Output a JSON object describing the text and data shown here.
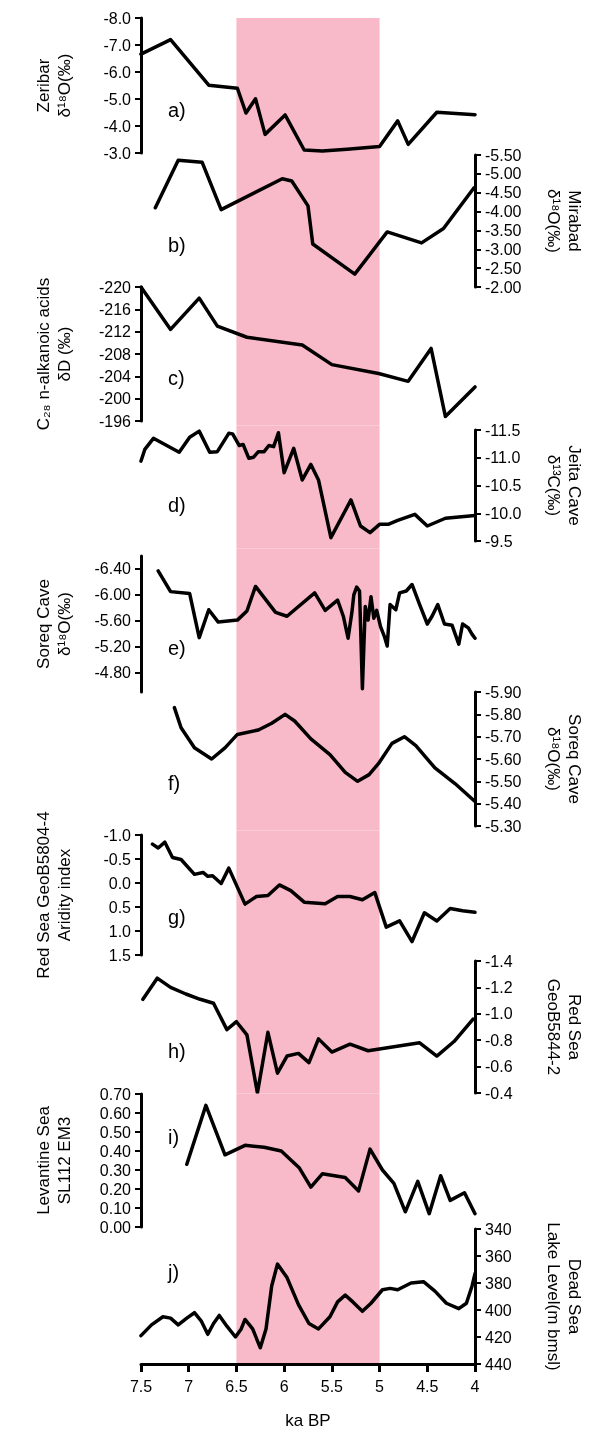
{
  "chart_data": [
    {
      "type": "line",
      "ylabel": "Zeribar\nδ¹⁸O(‰)",
      "annotations": [
        "a)"
      ],
      "xlim": [
        7.5,
        4
      ],
      "ylim": [
        -3.0,
        -8.0
      ],
      "yticks": [
        {
          "value": -8,
          "label": "-8.0"
        },
        {
          "value": -7,
          "label": "-7.0"
        },
        {
          "value": -6,
          "label": "-6.0"
        },
        {
          "value": -5,
          "label": "-5.0"
        },
        {
          "value": -4,
          "label": "-4.0"
        },
        {
          "value": -3,
          "label": "-3.0"
        }
      ],
      "tick_labels": "y",
      "marker": "none",
      "line_style": "solid",
      "bands": [
        {
          "axis": "x",
          "from": 6.5,
          "to": 5,
          "color": "#f8bac8"
        }
      ],
      "series": [
        {
          "color": "#000000",
          "x": [
            7.5,
            7.19,
            6.79,
            6.49,
            6.4,
            6.3,
            6.2,
            5.99,
            5.79,
            5.6,
            5.34,
            5.0,
            4.81,
            4.7,
            4.4,
            4.0
          ],
          "values": [
            -6.66,
            -7.2,
            -5.51,
            -5.4,
            -4.48,
            -5.01,
            -3.69,
            -4.41,
            -3.11,
            -3.07,
            -3.14,
            -3.24,
            -4.19,
            -3.32,
            -4.51,
            -4.42
          ]
        }
      ]
    },
    {
      "type": "line",
      "y2label": "Mirabad\nδ¹⁸O(‰)",
      "annotations": [
        "b)"
      ],
      "xlim": [
        7.5,
        4
      ],
      "y2lim": [
        -2.0,
        -5.5
      ],
      "y2ticks": [
        {
          "value": -5.5,
          "label": "-5.50"
        },
        {
          "value": -5,
          "label": "-5.00"
        },
        {
          "value": -4.5,
          "label": "-4.50"
        },
        {
          "value": -4,
          "label": "-4.00"
        },
        {
          "value": -3.5,
          "label": "-3.50"
        },
        {
          "value": -3,
          "label": "-3.00"
        },
        {
          "value": -2.5,
          "label": "-2.50"
        },
        {
          "value": -2,
          "label": "-2.00"
        }
      ],
      "tick_labels": "y",
      "marker": "none",
      "line_style": "solid",
      "bands": [
        {
          "axis": "x",
          "from": 6.5,
          "to": 5,
          "color": "#f8bac8"
        }
      ],
      "series": [
        {
          "axis": "y2",
          "color": "#000000",
          "x": [
            7.35,
            7.11,
            6.86,
            6.66,
            6.02,
            5.92,
            5.75,
            5.7,
            5.26,
            4.92,
            4.56,
            4.33,
            4.01
          ],
          "values": [
            -4.1,
            -5.36,
            -5.31,
            -4.05,
            -4.87,
            -4.81,
            -4.15,
            -3.14,
            -2.34,
            -3.46,
            -3.17,
            -3.55,
            -4.63
          ]
        }
      ]
    },
    {
      "type": "line",
      "ylabel": "C₂₈ n-alkanoic acids\nδD (‰)",
      "annotations": [
        "c)"
      ],
      "xlim": [
        7.5,
        4
      ],
      "ylim": [
        -196,
        -220
      ],
      "yticks": [
        -220,
        -216,
        -212,
        -208,
        -204,
        -200,
        -196
      ],
      "tick_labels": "y",
      "marker": "none",
      "line_style": "solid",
      "bands": [
        {
          "axis": "x",
          "from": 6.5,
          "to": 5,
          "color": "#f8bac8"
        }
      ],
      "series": [
        {
          "color": "#000000",
          "x": [
            7.5,
            7.19,
            6.89,
            6.7,
            6.39,
            5.81,
            5.5,
            5.01,
            4.7,
            4.46,
            4.31,
            4.0
          ],
          "values": [
            -220,
            -212.4,
            -218,
            -213,
            -211,
            -209.6,
            -206.1,
            -204.5,
            -203.1,
            -209,
            -196.8,
            -202.1
          ]
        }
      ]
    },
    {
      "type": "line",
      "y2label": "Jeita Cave\nδ¹³C(‰)",
      "annotations": [
        "d)"
      ],
      "xlim": [
        7.5,
        4
      ],
      "y2lim": [
        -9.5,
        -11.5
      ],
      "y2ticks": [
        -11.5,
        {
          "value": -11,
          "label": "-11.0"
        },
        -10.5,
        {
          "value": -10,
          "label": "-10.0"
        },
        -9.5
      ],
      "tick_labels": "y",
      "marker": "none",
      "line_style": "solid",
      "bands": [
        {
          "axis": "x",
          "from": 6.5,
          "to": 5,
          "color": "#f8bac8"
        }
      ],
      "series": [
        {
          "axis": "y2",
          "color": "#000000",
          "x": [
            7.5,
            7.46,
            7.37,
            7.1,
            6.99,
            6.89,
            6.78,
            6.7,
            6.58,
            6.54,
            6.47,
            6.43,
            6.37,
            6.32,
            6.27,
            6.21,
            6.16,
            6.11,
            6.06,
            6.0,
            5.9,
            5.81,
            5.72,
            5.64,
            5.51,
            5.3,
            5.2,
            5.1,
            5.0,
            4.91,
            4.81,
            4.63,
            4.5,
            4.31,
            4.0
          ],
          "values": [
            -10.94,
            -11.15,
            -11.35,
            -11.1,
            -11.37,
            -11.48,
            -11.1,
            -11.11,
            -11.44,
            -11.43,
            -11.22,
            -11.24,
            -10.99,
            -11.01,
            -11.11,
            -11.11,
            -11.22,
            -11.2,
            -11.45,
            -10.73,
            -11.17,
            -10.6,
            -10.88,
            -10.6,
            -9.56,
            -10.24,
            -9.77,
            -9.65,
            -9.8,
            -9.8,
            -9.87,
            -9.98,
            -9.77,
            -9.91,
            -9.96
          ]
        }
      ]
    },
    {
      "type": "line",
      "ylabel": "Soreq Cave\nδ¹⁸O(‰)",
      "annotations": [
        "e)"
      ],
      "xlim": [
        7.5,
        4
      ],
      "ylim": [
        -4.5,
        -6.6
      ],
      "yticks": [
        {
          "value": -6.4,
          "label": "-6.40"
        },
        {
          "value": -6,
          "label": "-6.00"
        },
        {
          "value": -5.6,
          "label": "-5.60"
        },
        {
          "value": -5.2,
          "label": "-5.20"
        },
        {
          "value": -4.8,
          "label": "-4.80"
        }
      ],
      "tick_labels": "y",
      "marker": "none",
      "line_style": "solid",
      "bands": [
        {
          "axis": "x",
          "from": 6.5,
          "to": 5,
          "color": "#f8bac8"
        }
      ],
      "series": [
        {
          "color": "#000000",
          "x": [
            7.32,
            7.19,
            6.99,
            6.89,
            6.79,
            6.69,
            6.49,
            6.39,
            6.3,
            6.09,
            5.97,
            5.68,
            5.57,
            5.44,
            5.38,
            5.33,
            5.29,
            5.27,
            5.24,
            5.21,
            5.18,
            5.15,
            5.12,
            5.09,
            5.06,
            5.03,
            4.99,
            4.95,
            4.92,
            4.89,
            4.83,
            4.79,
            4.72,
            4.66,
            4.58,
            4.5,
            4.45,
            4.39,
            4.32,
            4.24,
            4.17,
            4.13,
            4.07,
            4.03,
            4.0
          ],
          "values": [
            -6.37,
            -6.05,
            -6.02,
            -5.34,
            -5.77,
            -5.58,
            -5.61,
            -5.75,
            -6.13,
            -5.73,
            -5.67,
            -6.03,
            -5.76,
            -5.92,
            -5.67,
            -5.33,
            -5.73,
            -6.0,
            -6.12,
            -6.06,
            -4.55,
            -5.82,
            -5.61,
            -5.97,
            -5.64,
            -5.76,
            -5.51,
            -5.36,
            -5.21,
            -5.85,
            -5.77,
            -6.03,
            -6.06,
            -6.16,
            -5.85,
            -5.55,
            -5.67,
            -5.85,
            -5.55,
            -5.53,
            -5.24,
            -5.55,
            -5.49,
            -5.39,
            -5.33
          ]
        }
      ]
    },
    {
      "type": "line",
      "y2label": "Soreq Cave\nδ¹⁸O(‰)",
      "annotations": [
        "f)"
      ],
      "xlim": [
        7.5,
        4
      ],
      "y2lim": [
        -5.3,
        -5.9
      ],
      "y2ticks": [
        {
          "value": -5.9,
          "label": "-5.90"
        },
        {
          "value": -5.8,
          "label": "-5.80"
        },
        {
          "value": -5.7,
          "label": "-5.70"
        },
        {
          "value": -5.6,
          "label": "-5.60"
        },
        {
          "value": -5.5,
          "label": "-5.50"
        },
        {
          "value": -5.4,
          "label": "-5.40"
        },
        {
          "value": -5.3,
          "label": "-5.30"
        }
      ],
      "tick_labels": "y",
      "marker": "none",
      "line_style": "solid",
      "bands": [
        {
          "axis": "x",
          "from": 6.5,
          "to": 5,
          "color": "#f8bac8"
        }
      ],
      "series": [
        {
          "axis": "y2",
          "color": "#000000",
          "x": [
            7.15,
            7.08,
            6.94,
            6.76,
            6.62,
            6.49,
            6.27,
            6.13,
            5.99,
            5.89,
            5.72,
            5.52,
            5.36,
            5.23,
            5.11,
            5.01,
            4.87,
            4.74,
            4.62,
            4.42,
            4.21,
            4.0
          ],
          "values": [
            -5.83,
            -5.74,
            -5.65,
            -5.6,
            -5.65,
            -5.71,
            -5.73,
            -5.76,
            -5.8,
            -5.77,
            -5.69,
            -5.62,
            -5.54,
            -5.5,
            -5.53,
            -5.58,
            -5.67,
            -5.7,
            -5.66,
            -5.56,
            -5.49,
            -5.41
          ]
        }
      ]
    },
    {
      "type": "line",
      "ylabel": "Red Sea GeoB5804-4\nAridity index",
      "annotations": [
        "g)"
      ],
      "xlim": [
        7.5,
        4
      ],
      "ylim": [
        1.5,
        -1.0
      ],
      "yticks": [
        {
          "value": -1,
          "label": "-1.0"
        },
        -0.5,
        {
          "value": 0,
          "label": "0.0"
        },
        0.5,
        {
          "value": 1,
          "label": "1.0"
        },
        1.5
      ],
      "tick_labels": "y",
      "marker": "none",
      "line_style": "solid",
      "bands": [
        {
          "axis": "x",
          "from": 6.5,
          "to": 5,
          "color": "#f8bac8"
        }
      ],
      "series": [
        {
          "color": "#000000",
          "x": [
            7.38,
            7.32,
            7.25,
            7.17,
            7.08,
            6.94,
            6.85,
            6.8,
            6.75,
            6.66,
            6.58,
            6.41,
            6.29,
            6.17,
            6.05,
            5.93,
            5.79,
            5.57,
            5.44,
            5.31,
            5.18,
            5.05,
            4.93,
            4.79,
            4.66,
            4.53,
            4.4,
            4.26,
            4.13,
            4.0
          ],
          "values": [
            -0.81,
            -0.73,
            -0.85,
            -0.53,
            -0.49,
            -0.18,
            -0.22,
            -0.14,
            -0.15,
            0.01,
            -0.31,
            0.44,
            0.28,
            0.26,
            0.04,
            0.16,
            0.4,
            0.43,
            0.28,
            0.28,
            0.35,
            0.2,
            0.92,
            0.79,
            1.22,
            0.62,
            0.79,
            0.53,
            0.58,
            0.61
          ]
        }
      ]
    },
    {
      "type": "line",
      "y2label": "Red Sea\nGeoB5844-2",
      "annotations": [
        "h)"
      ],
      "xlim": [
        7.5,
        4
      ],
      "y2lim": [
        -0.4,
        -1.4
      ],
      "y2ticks": [
        -1.4,
        -1.2,
        {
          "value": -1,
          "label": "-1.0"
        },
        -0.8,
        -0.6,
        -0.4
      ],
      "tick_labels": "y",
      "marker": "none",
      "line_style": "solid",
      "bands": [
        {
          "axis": "x",
          "from": 6.5,
          "to": 5,
          "color": "#f8bac8"
        }
      ],
      "series": [
        {
          "axis": "y2",
          "color": "#000000",
          "x": [
            7.48,
            7.33,
            7.19,
            7.03,
            6.88,
            6.74,
            6.6,
            6.5,
            6.39,
            6.28,
            6.17,
            6.07,
            5.97,
            5.85,
            5.74,
            5.64,
            5.5,
            5.31,
            5.12,
            4.58,
            4.4,
            4.22,
            4.02
          ],
          "values": [
            -1.11,
            -1.27,
            -1.2,
            -1.15,
            -1.11,
            -1.08,
            -0.88,
            -0.94,
            -0.84,
            -0.4,
            -0.86,
            -0.55,
            -0.68,
            -0.7,
            -0.63,
            -0.81,
            -0.71,
            -0.77,
            -0.72,
            -0.78,
            -0.68,
            -0.79,
            -0.96
          ]
        }
      ]
    },
    {
      "type": "line",
      "ylabel": "Levantine Sea\nSL112 EM3",
      "annotations": [
        "i)"
      ],
      "xlim": [
        7.5,
        4
      ],
      "ylim": [
        0,
        0.7
      ],
      "yticks": [
        {
          "value": 0,
          "label": "0.00"
        },
        {
          "value": 0.1,
          "label": "0.10"
        },
        {
          "value": 0.2,
          "label": "0.20"
        },
        {
          "value": 0.3,
          "label": "0.30"
        },
        {
          "value": 0.4,
          "label": "0.40"
        },
        {
          "value": 0.5,
          "label": "0.50"
        },
        {
          "value": 0.6,
          "label": "0.60"
        },
        {
          "value": 0.7,
          "label": "0.70"
        }
      ],
      "tick_labels": "y",
      "marker": "none",
      "line_style": "solid",
      "bands": [
        {
          "axis": "x",
          "from": 6.5,
          "to": 5,
          "color": "#f8bac8"
        }
      ],
      "series": [
        {
          "color": "#000000",
          "x": [
            7.02,
            6.82,
            6.62,
            6.41,
            6.21,
            6.03,
            5.84,
            5.72,
            5.6,
            5.36,
            5.22,
            5.1,
            4.97,
            4.85,
            4.73,
            4.6,
            4.48,
            4.36,
            4.26,
            4.11,
            4.0
          ],
          "values": [
            0.33,
            0.64,
            0.38,
            0.43,
            0.42,
            0.4,
            0.31,
            0.21,
            0.28,
            0.26,
            0.19,
            0.41,
            0.3,
            0.23,
            0.08,
            0.24,
            0.07,
            0.27,
            0.14,
            0.18,
            0.07
          ]
        }
      ]
    },
    {
      "type": "line",
      "xlabel": "ka BP",
      "y2label": "Dead Sea\nLake Level(m bmsl)",
      "annotations": [
        "j)"
      ],
      "xlim": [
        7.5,
        4
      ],
      "xticks": [
        7.5,
        7,
        6.5,
        6,
        5.5,
        5,
        4.5,
        4
      ],
      "y2lim": [
        440,
        340
      ],
      "y2ticks": [
        340,
        360,
        380,
        400,
        420,
        440
      ],
      "marker": "none",
      "line_style": "solid",
      "bands": [
        {
          "axis": "x",
          "from": 6.5,
          "to": 5,
          "color": "#f8bac8"
        }
      ],
      "series": [
        {
          "axis": "y2",
          "color": "#000000",
          "x": [
            7.5,
            7.39,
            7.27,
            7.19,
            7.11,
            7.02,
            6.94,
            6.87,
            6.8,
            6.74,
            6.68,
            6.6,
            6.51,
            6.45,
            6.41,
            6.33,
            6.25,
            6.19,
            6.13,
            6.07,
            5.97,
            5.85,
            5.74,
            5.64,
            5.52,
            5.44,
            5.36,
            5.28,
            5.18,
            5.09,
            4.97,
            4.89,
            4.81,
            4.67,
            4.54,
            4.42,
            4.3,
            4.17,
            4.09,
            4.03,
            4.0
          ],
          "values": [
            419,
            411,
            405,
            406,
            411,
            406,
            402,
            408,
            418,
            410,
            404,
            412,
            420,
            414,
            407,
            414,
            428,
            414,
            382,
            366,
            376,
            396,
            410,
            414,
            405,
            394,
            389,
            394,
            401,
            395,
            385,
            384,
            385,
            380,
            379,
            386,
            395,
            399,
            395,
            382,
            373
          ]
        }
      ]
    }
  ]
}
